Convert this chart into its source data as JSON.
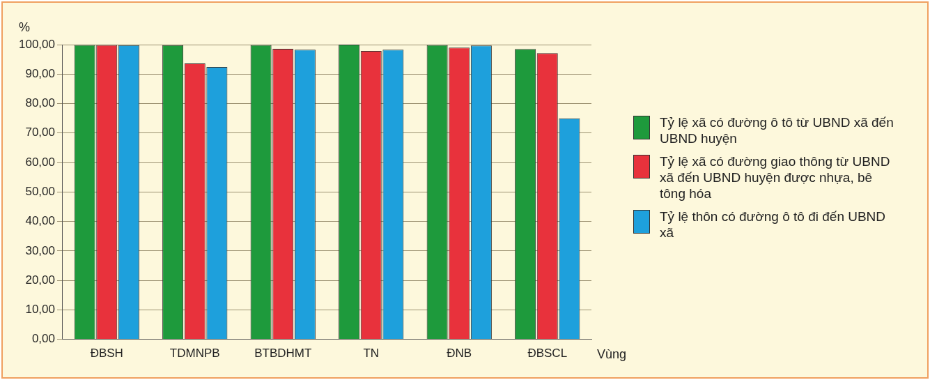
{
  "chart_data": {
    "type": "bar",
    "ylabel": "%",
    "xlabel": "Vùng",
    "categories": [
      "ĐBSH",
      "TDMNPB",
      "BTBDHMT",
      "TN",
      "ĐNB",
      "ĐBSCL"
    ],
    "series": [
      {
        "name": "Tỷ lệ xã có đường ô tô từ UBND xã đến UBND huyện",
        "color": "#1e9a3c",
        "values": [
          99.9,
          99.8,
          99.9,
          100,
          99.9,
          98.5
        ]
      },
      {
        "name": "Tỷ lệ xã có đường giao thông từ UBND xã đến UBND huyện được nhựa, bê tông hóa",
        "color": "#e8323c",
        "values": [
          99.9,
          93.6,
          98.6,
          97.9,
          99,
          97.1
        ]
      },
      {
        "name": "Tỷ lệ thôn có đường ô tô đi đến UBND xã",
        "color": "#1ea0dc",
        "values": [
          99.8,
          92.4,
          98.3,
          98.3,
          99.7,
          75
        ]
      }
    ],
    "ylim": [
      0,
      100
    ],
    "yticks": [
      {
        "value": 0,
        "label": "0,00"
      },
      {
        "value": 10,
        "label": "10,00"
      },
      {
        "value": 20,
        "label": "20,00"
      },
      {
        "value": 30,
        "label": "30,00"
      },
      {
        "value": 40,
        "label": "40,00"
      },
      {
        "value": 50,
        "label": "50,00"
      },
      {
        "value": 60,
        "label": "60,00"
      },
      {
        "value": 70,
        "label": "70,00"
      },
      {
        "value": 80,
        "label": "80,00"
      },
      {
        "value": 90,
        "label": "90,00"
      },
      {
        "value": 100,
        "label": "100,00"
      }
    ],
    "grid": "y",
    "legend": "right"
  }
}
